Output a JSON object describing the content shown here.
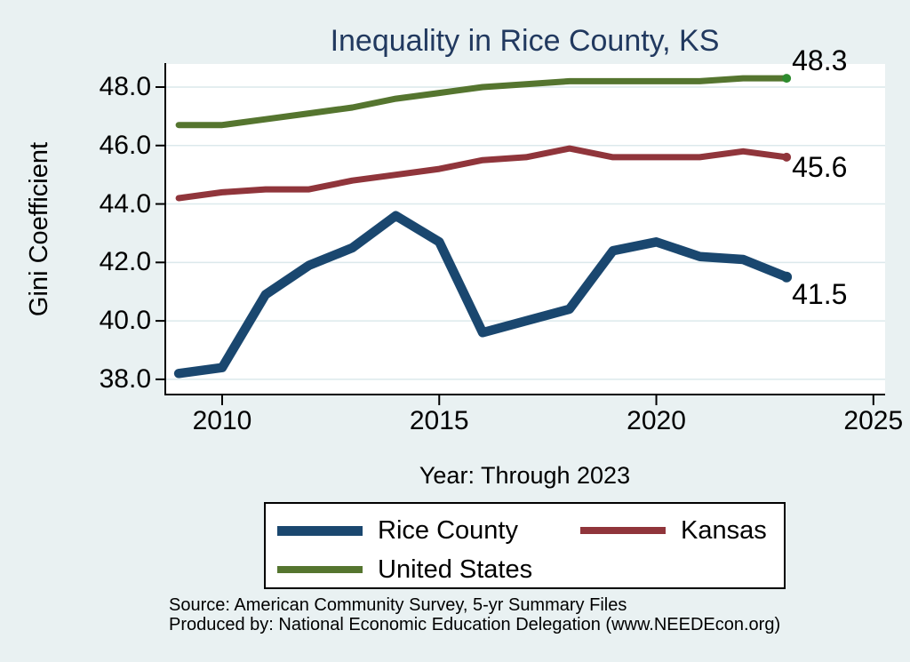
{
  "title": "Inequality in Rice County, KS",
  "chart_data": {
    "type": "line",
    "title": "Inequality in Rice County, KS",
    "xlabel": "Year: Through 2023",
    "ylabel": "Gini Coefficient",
    "x": [
      2009,
      2010,
      2011,
      2012,
      2013,
      2014,
      2015,
      2016,
      2017,
      2018,
      2019,
      2020,
      2021,
      2022,
      2023
    ],
    "series": [
      {
        "name": "Rice County",
        "color": "#1a476f",
        "line_width": 10.5,
        "end_dot_color": "#17456b",
        "values": [
          38.2,
          38.4,
          40.9,
          41.9,
          42.5,
          43.6,
          42.7,
          39.6,
          40.0,
          40.4,
          42.4,
          42.7,
          42.2,
          42.1,
          41.5
        ],
        "end_label": "41.5"
      },
      {
        "name": "Kansas",
        "color": "#90353b",
        "line_width": 7,
        "end_dot_color": "#90353b",
        "values": [
          44.2,
          44.4,
          44.5,
          44.5,
          44.8,
          45.0,
          45.2,
          45.5,
          45.6,
          45.9,
          45.6,
          45.6,
          45.6,
          45.8,
          45.6
        ],
        "end_label": "45.6"
      },
      {
        "name": "United States",
        "color": "#55752f",
        "line_width": 7,
        "end_dot_color": "#2e8b2e",
        "values": [
          46.7,
          46.7,
          46.9,
          47.1,
          47.3,
          47.6,
          47.8,
          48.0,
          48.1,
          48.2,
          48.2,
          48.2,
          48.2,
          48.3,
          48.3
        ],
        "end_label": "48.3"
      }
    ],
    "y_ticks": [
      38,
      40,
      42,
      44,
      46,
      48
    ],
    "y_tick_labels": [
      "38.0",
      "40.0",
      "42.0",
      "44.0",
      "46.0",
      "48.0"
    ],
    "x_ticks": [
      2010,
      2015,
      2020,
      2025
    ],
    "x_tick_labels": [
      "2010",
      "2015",
      "2020",
      "2025"
    ],
    "ylim": [
      37.51,
      48.79
    ],
    "xlim": [
      2008.67,
      2025.27
    ],
    "grid": "horizontal gridlines only",
    "legend_position": "bottom"
  },
  "legend": {
    "items": [
      {
        "label": "Rice County",
        "color": "#1a476f"
      },
      {
        "label": "Kansas",
        "color": "#90353b"
      },
      {
        "label": "United States",
        "color": "#55752f"
      }
    ]
  },
  "footer": {
    "line1": "Source: American Community Survey, 5-yr Summary Files",
    "line2": "Produced by: National Economic Education Delegation (www.NEEDEcon.org)"
  },
  "colors": {
    "background": "#e9f1f2",
    "plot_background": "#ffffff",
    "grid": "#dce9ec",
    "axis": "#000000",
    "title_text": "#21395f",
    "label_text": "#000000"
  }
}
